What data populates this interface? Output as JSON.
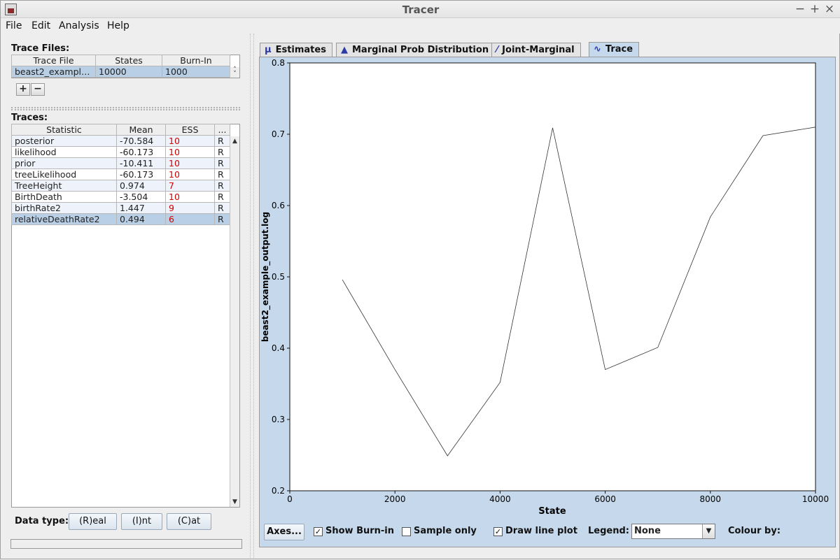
{
  "window": {
    "title": "Tracer"
  },
  "menu": [
    "File",
    "Edit",
    "Analysis",
    "Help"
  ],
  "trace_files": {
    "label": "Trace Files:",
    "columns": [
      "Trace File",
      "States",
      "Burn-In"
    ],
    "rows": [
      [
        "beast2_example...",
        "10000",
        "1000"
      ]
    ],
    "add_label": "+",
    "remove_label": "−"
  },
  "traces": {
    "label": "Traces:",
    "columns": [
      "Statistic",
      "Mean",
      "ESS",
      "..."
    ],
    "rows": [
      {
        "stat": "posterior",
        "mean": "-70.584",
        "ess": "10",
        "type": "R"
      },
      {
        "stat": "likelihood",
        "mean": "-60.173",
        "ess": "10",
        "type": "R"
      },
      {
        "stat": "prior",
        "mean": "-10.411",
        "ess": "10",
        "type": "R"
      },
      {
        "stat": "treeLikelihood",
        "mean": "-60.173",
        "ess": "10",
        "type": "R"
      },
      {
        "stat": "TreeHeight",
        "mean": "0.974",
        "ess": "7",
        "type": "R"
      },
      {
        "stat": "BirthDeath",
        "mean": "-3.504",
        "ess": "10",
        "type": "R"
      },
      {
        "stat": "birthRate2",
        "mean": "1.447",
        "ess": "9",
        "type": "R"
      },
      {
        "stat": "relativeDeathRate2",
        "mean": "0.494",
        "ess": "6",
        "type": "R"
      }
    ]
  },
  "data_type": {
    "label": "Data type:",
    "buttons": [
      "(R)eal",
      "(I)nt",
      "(C)at"
    ]
  },
  "tabs": [
    {
      "icon": "μ",
      "label": "Estimates"
    },
    {
      "icon": "▲",
      "label": "Marginal Prob Distribution"
    },
    {
      "icon": "⁄",
      "label": "Joint-Marginal"
    },
    {
      "icon": "∿",
      "label": "Trace"
    }
  ],
  "active_tab": "Trace",
  "controls": {
    "axes_label": "Axes...",
    "show_burnin_label": "Show Burn-in",
    "show_burnin": true,
    "sample_only_label": "Sample only",
    "sample_only": false,
    "draw_line_label": "Draw line plot",
    "draw_line": true,
    "legend_label": "Legend:",
    "legend_value": "None",
    "colour_by_label": "Colour by:"
  },
  "colors": {
    "panel": "#c6d9ec",
    "selection": "#b8cfe5",
    "ess_low": "#d00000"
  },
  "chart_data": {
    "type": "line",
    "xlabel": "State",
    "ylabel": "beast2_example_output.log",
    "xlim": [
      0,
      10000
    ],
    "ylim": [
      0.2,
      0.8
    ],
    "xticks": [
      0,
      2000,
      4000,
      6000,
      8000,
      10000
    ],
    "yticks": [
      0.2,
      0.3,
      0.4,
      0.5,
      0.6,
      0.7,
      0.8
    ],
    "x": [
      1000,
      2000,
      3000,
      4000,
      5000,
      6000,
      7000,
      8000,
      9000,
      10000
    ],
    "y": [
      0.496,
      0.37,
      0.249,
      0.352,
      0.709,
      0.37,
      0.401,
      0.584,
      0.698,
      0.71
    ],
    "grid": false
  }
}
